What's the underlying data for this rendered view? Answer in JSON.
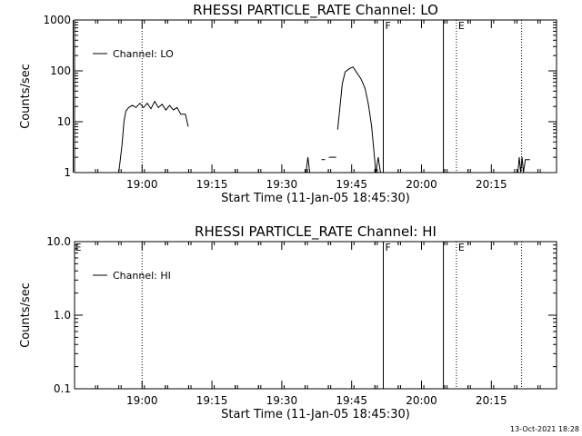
{
  "footer": {
    "timestamp": "13-Oct-2021 18:28"
  },
  "chart_data": [
    {
      "type": "line",
      "title": "RHESSI PARTICLE_RATE Channel: LO",
      "xlabel": "Start Time (11-Jan-05 18:45:30)",
      "ylabel": "Counts/sec",
      "y_scale": "log",
      "ylim": [
        1,
        1000
      ],
      "xlim_minutes_after_1845_30": [
        0,
        103.5
      ],
      "y_ticks": [
        "1",
        "10",
        "100",
        "1000"
      ],
      "x_ticks": [
        {
          "label": "19:00",
          "t": 14.5
        },
        {
          "label": "19:15",
          "t": 29.5
        },
        {
          "label": "19:30",
          "t": 44.5
        },
        {
          "label": "19:45",
          "t": 59.5
        },
        {
          "label": "20:00",
          "t": 74.5
        },
        {
          "label": "20:15",
          "t": 89.5
        }
      ],
      "legend": {
        "label": "Channel: LO",
        "position": "top-left"
      },
      "markers": [
        {
          "letter": "",
          "t": -0.3,
          "style": "solid"
        },
        {
          "letter": "",
          "t": 14.5,
          "style": "dotted"
        },
        {
          "letter": "F",
          "t": 66.3,
          "style": "solid"
        },
        {
          "letter": "",
          "t": 79.2,
          "style": "solid"
        },
        {
          "letter": "E",
          "t": 82.0,
          "style": "dotted"
        },
        {
          "letter": "",
          "t": 96.0,
          "style": "dotted"
        }
      ],
      "series": [
        {
          "name": "Channel: LO",
          "segments": [
            [
              [
                9.5,
                1.0
              ],
              [
                10.2,
                3.5
              ],
              [
                10.6,
                10.0
              ],
              [
                11.0,
                16.0
              ],
              [
                11.6,
                19.0
              ],
              [
                12.4,
                21.0
              ],
              [
                13.2,
                19.0
              ],
              [
                14.0,
                23.0
              ],
              [
                14.8,
                19.0
              ],
              [
                15.6,
                23.0
              ],
              [
                16.4,
                18.0
              ],
              [
                17.2,
                25.0
              ],
              [
                18.0,
                19.0
              ],
              [
                18.8,
                22.0
              ],
              [
                19.6,
                17.0
              ],
              [
                20.4,
                21.0
              ],
              [
                21.2,
                17.0
              ],
              [
                22.0,
                19.0
              ],
              [
                22.8,
                14.0
              ],
              [
                23.8,
                14.0
              ],
              [
                24.4,
                8.0
              ]
            ],
            [
              [
                49.7,
                1.0
              ],
              [
                50.1,
                2.0
              ],
              [
                50.5,
                1.0
              ]
            ],
            [
              [
                53.0,
                1.8
              ],
              [
                53.8,
                1.8
              ]
            ],
            [
              [
                54.6,
                2.0
              ],
              [
                56.2,
                2.0
              ]
            ],
            [
              [
                56.5,
                7.0
              ],
              [
                57.0,
                20.0
              ],
              [
                57.5,
                55.0
              ],
              [
                58.1,
                95.0
              ],
              [
                59.0,
                110.0
              ],
              [
                59.8,
                120.0
              ],
              [
                60.5,
                95.0
              ],
              [
                61.5,
                70.0
              ],
              [
                62.4,
                45.0
              ],
              [
                63.1,
                22.0
              ],
              [
                63.8,
                8.0
              ],
              [
                64.3,
                2.5
              ],
              [
                64.7,
                1.0
              ],
              [
                65.2,
                2.0
              ],
              [
                65.7,
                1.0
              ]
            ],
            [
              [
                95.2,
                1.0
              ],
              [
                95.5,
                2.0
              ],
              [
                95.8,
                1.0
              ],
              [
                96.1,
                2.0
              ],
              [
                96.4,
                1.0
              ],
              [
                96.8,
                1.8
              ],
              [
                97.8,
                1.8
              ]
            ]
          ]
        }
      ]
    },
    {
      "type": "line",
      "title": "RHESSI PARTICLE_RATE Channel: HI",
      "xlabel": "Start Time (11-Jan-05 18:45:30)",
      "ylabel": "Counts/sec",
      "y_scale": "log",
      "ylim": [
        0.1,
        10.0
      ],
      "xlim_minutes_after_1845_30": [
        0,
        103.5
      ],
      "y_ticks": [
        "0.1",
        "1.0",
        "10.0"
      ],
      "x_ticks": [
        {
          "label": "19:00",
          "t": 14.5
        },
        {
          "label": "19:15",
          "t": 29.5
        },
        {
          "label": "19:30",
          "t": 44.5
        },
        {
          "label": "19:45",
          "t": 59.5
        },
        {
          "label": "20:00",
          "t": 74.5
        },
        {
          "label": "20:15",
          "t": 89.5
        }
      ],
      "legend": {
        "label": "Channel: HI",
        "position": "top-left"
      },
      "markers": [
        {
          "letter": "E",
          "t": -0.3,
          "style": "none"
        },
        {
          "letter": "",
          "t": 14.5,
          "style": "dotted"
        },
        {
          "letter": "F",
          "t": 66.3,
          "style": "solid"
        },
        {
          "letter": "",
          "t": 79.2,
          "style": "solid"
        },
        {
          "letter": "E",
          "t": 82.0,
          "style": "dotted"
        },
        {
          "letter": "",
          "t": 96.0,
          "style": "dotted"
        }
      ],
      "series": [
        {
          "name": "Channel: HI",
          "segments": []
        }
      ]
    }
  ]
}
